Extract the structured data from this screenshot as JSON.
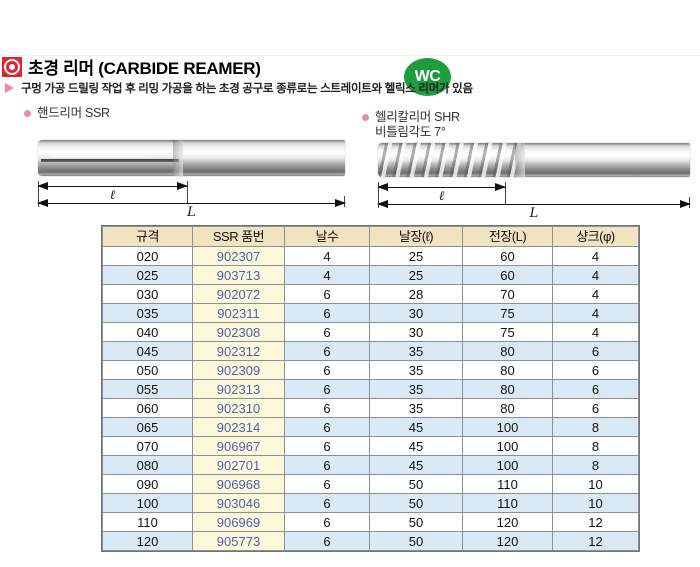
{
  "header": {
    "title": "초경 리머 (CARBIDE REAMER)",
    "description": "구멍 가공 드릴링 작업 후 리밍 가공을 하는 초경 공구로 종류로는 스트레이트와 헬릭스 리머가 있음",
    "badge": "WC"
  },
  "products": [
    {
      "label": "핸드리머 SSR",
      "sublabel": "",
      "dim_small": "ℓ",
      "dim_large": "L"
    },
    {
      "label": "헬리칼리머 SHR",
      "sublabel": "비틀림각도 7°",
      "dim_small": "ℓ",
      "dim_large": "L"
    }
  ],
  "table": {
    "headers": [
      "규격",
      "SSR 품번",
      "날수",
      "날장(ℓ)",
      "전장(L)",
      "샹크(φ)"
    ],
    "rows": [
      [
        "020",
        "902307",
        "4",
        "25",
        "60",
        "4"
      ],
      [
        "025",
        "903713",
        "4",
        "25",
        "60",
        "4"
      ],
      [
        "030",
        "902072",
        "6",
        "28",
        "70",
        "4"
      ],
      [
        "035",
        "902311",
        "6",
        "30",
        "75",
        "4"
      ],
      [
        "040",
        "902308",
        "6",
        "30",
        "75",
        "4"
      ],
      [
        "045",
        "902312",
        "6",
        "35",
        "80",
        "6"
      ],
      [
        "050",
        "902309",
        "6",
        "35",
        "80",
        "6"
      ],
      [
        "055",
        "902313",
        "6",
        "35",
        "80",
        "6"
      ],
      [
        "060",
        "902310",
        "6",
        "35",
        "80",
        "6"
      ],
      [
        "065",
        "902314",
        "6",
        "45",
        "100",
        "8"
      ],
      [
        "070",
        "906967",
        "6",
        "45",
        "100",
        "8"
      ],
      [
        "080",
        "902701",
        "6",
        "45",
        "100",
        "8"
      ],
      [
        "090",
        "906968",
        "6",
        "50",
        "110",
        "10"
      ],
      [
        "100",
        "903046",
        "6",
        "50",
        "110",
        "10"
      ],
      [
        "110",
        "906969",
        "6",
        "50",
        "120",
        "12"
      ],
      [
        "120",
        "905773",
        "6",
        "50",
        "120",
        "12"
      ]
    ]
  },
  "colors": {
    "table-header-bg": "#f1e2c0",
    "part-col-bg": "#fdf8da",
    "row-alt-bg": "#d9eaf6",
    "table-border": "#8a9096",
    "part-number-text": "#4a63b2",
    "badge-green": "#1f9c3d",
    "accent-red": "#e2252b",
    "accent-pink": "#f287b2"
  }
}
